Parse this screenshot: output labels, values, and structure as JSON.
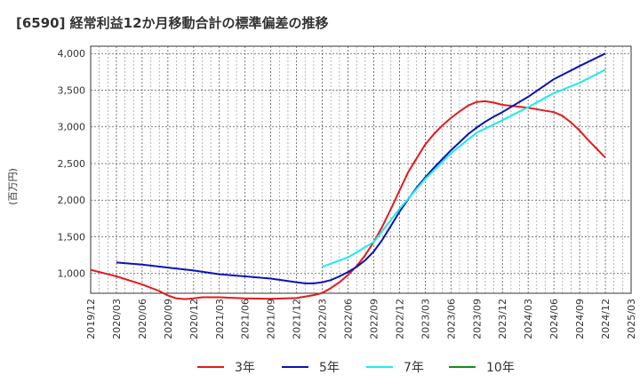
{
  "chart_data": {
    "type": "line",
    "title": "[6590]  経常利益12か月移動合計の標準偏差の推移",
    "ylabel": "(百万円)",
    "xlabel": "",
    "ylim": [
      730,
      4100
    ],
    "yticks": [
      1000,
      1500,
      2000,
      2500,
      3000,
      3500,
      4000
    ],
    "ytick_labels": [
      "1,000",
      "1,500",
      "2,000",
      "2,500",
      "3,000",
      "3,500",
      "4,000"
    ],
    "xticks": [
      "2019/12",
      "2020/03",
      "2020/06",
      "2020/09",
      "2020/12",
      "2021/03",
      "2021/06",
      "2021/09",
      "2021/12",
      "2022/03",
      "2022/06",
      "2022/09",
      "2022/12",
      "2023/03",
      "2023/06",
      "2023/09",
      "2023/12",
      "2024/03",
      "2024/06",
      "2024/09",
      "2024/12",
      "2025/03"
    ],
    "grid": true,
    "legend_position": "bottom",
    "series": [
      {
        "name": "3年",
        "color": "#e31a1c",
        "points": [
          [
            "2019/12",
            1050
          ],
          [
            "2020/03",
            960
          ],
          [
            "2020/06",
            850
          ],
          [
            "2020/08",
            760
          ],
          [
            "2020/09",
            700
          ],
          [
            "2020/10",
            660
          ],
          [
            "2020/11",
            650
          ],
          [
            "2020/12",
            660
          ],
          [
            "2021/01",
            675
          ],
          [
            "2021/03",
            675
          ],
          [
            "2021/06",
            660
          ],
          [
            "2021/09",
            655
          ],
          [
            "2021/12",
            665
          ],
          [
            "2022/02",
            705
          ],
          [
            "2022/03",
            735
          ],
          [
            "2022/04",
            800
          ],
          [
            "2022/05",
            880
          ],
          [
            "2022/06",
            980
          ],
          [
            "2022/07",
            1100
          ],
          [
            "2022/08",
            1250
          ],
          [
            "2022/09",
            1430
          ],
          [
            "2022/10",
            1640
          ],
          [
            "2022/11",
            1880
          ],
          [
            "2022/12",
            2130
          ],
          [
            "2023/01",
            2380
          ],
          [
            "2023/02",
            2570
          ],
          [
            "2023/03",
            2760
          ],
          [
            "2023/04",
            2900
          ],
          [
            "2023/05",
            3020
          ],
          [
            "2023/06",
            3120
          ],
          [
            "2023/07",
            3210
          ],
          [
            "2023/08",
            3290
          ],
          [
            "2023/09",
            3340
          ],
          [
            "2023/10",
            3350
          ],
          [
            "2023/11",
            3330
          ],
          [
            "2023/12",
            3300
          ],
          [
            "2024/03",
            3260
          ],
          [
            "2024/06",
            3200
          ],
          [
            "2024/07",
            3150
          ],
          [
            "2024/08",
            3060
          ],
          [
            "2024/09",
            2950
          ],
          [
            "2024/10",
            2820
          ],
          [
            "2024/11",
            2700
          ],
          [
            "2024/12",
            2580
          ]
        ]
      },
      {
        "name": "5年",
        "color": "#0a14b4",
        "points": [
          [
            "2020/03",
            1150
          ],
          [
            "2020/06",
            1120
          ],
          [
            "2020/09",
            1080
          ],
          [
            "2020/12",
            1040
          ],
          [
            "2021/03",
            990
          ],
          [
            "2021/06",
            960
          ],
          [
            "2021/09",
            930
          ],
          [
            "2021/12",
            880
          ],
          [
            "2022/01",
            865
          ],
          [
            "2022/02",
            865
          ],
          [
            "2022/03",
            880
          ],
          [
            "2022/04",
            910
          ],
          [
            "2022/05",
            960
          ],
          [
            "2022/06",
            1020
          ],
          [
            "2022/07",
            1090
          ],
          [
            "2022/08",
            1180
          ],
          [
            "2022/09",
            1300
          ],
          [
            "2022/10",
            1460
          ],
          [
            "2022/11",
            1650
          ],
          [
            "2022/12",
            1840
          ],
          [
            "2023/01",
            2010
          ],
          [
            "2023/02",
            2170
          ],
          [
            "2023/03",
            2310
          ],
          [
            "2023/04",
            2440
          ],
          [
            "2023/05",
            2560
          ],
          [
            "2023/06",
            2680
          ],
          [
            "2023/07",
            2790
          ],
          [
            "2023/08",
            2900
          ],
          [
            "2023/09",
            2990
          ],
          [
            "2023/10",
            3070
          ],
          [
            "2023/11",
            3140
          ],
          [
            "2023/12",
            3200
          ],
          [
            "2024/03",
            3410
          ],
          [
            "2024/06",
            3650
          ],
          [
            "2024/09",
            3830
          ],
          [
            "2024/12",
            4000
          ]
        ]
      },
      {
        "name": "7年",
        "color": "#1ee8f0",
        "points": [
          [
            "2022/03",
            1090
          ],
          [
            "2022/06",
            1220
          ],
          [
            "2022/09",
            1430
          ],
          [
            "2022/12",
            1880
          ],
          [
            "2023/03",
            2290
          ],
          [
            "2023/06",
            2640
          ],
          [
            "2023/09",
            2920
          ],
          [
            "2023/12",
            3090
          ],
          [
            "2024/03",
            3270
          ],
          [
            "2024/06",
            3460
          ],
          [
            "2024/09",
            3600
          ],
          [
            "2024/12",
            3780
          ]
        ]
      },
      {
        "name": "10年",
        "color": "#1a8a1a",
        "points": []
      }
    ]
  }
}
